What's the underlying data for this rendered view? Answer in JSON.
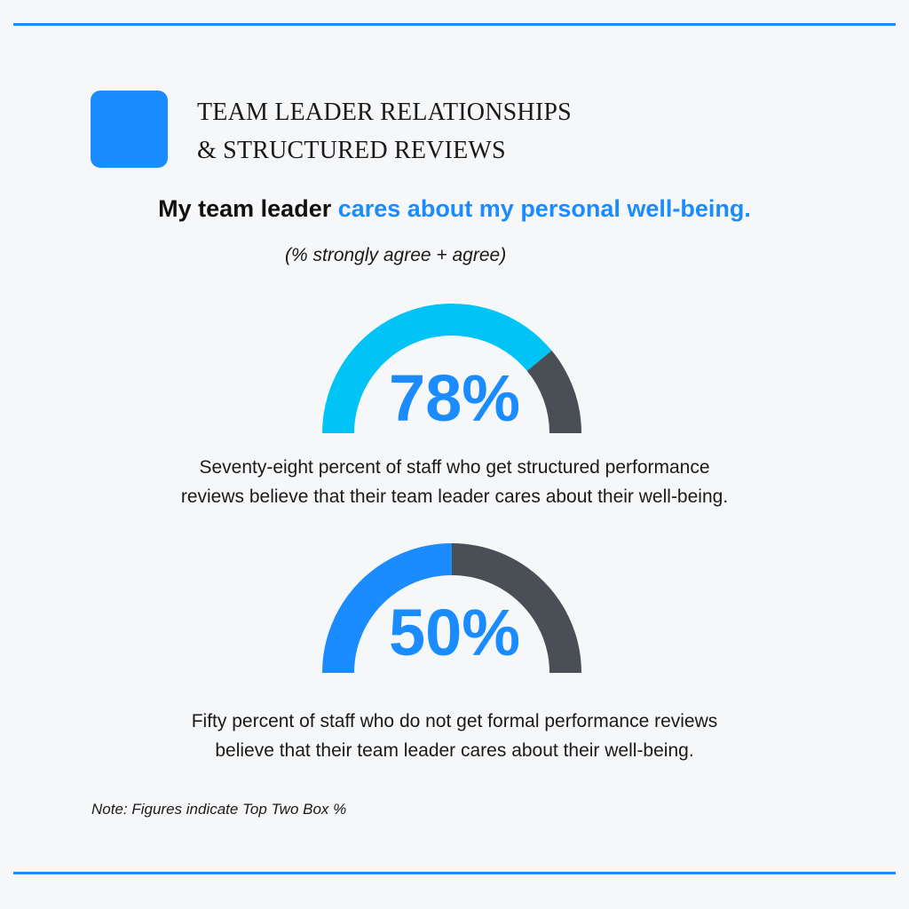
{
  "header": {
    "title_line1": "TEAM LEADER RELATIONSHIPS",
    "title_line2": "& STRUCTURED REVIEWS",
    "headline_plain": "My team leader",
    "headline_accent": "cares about my personal well-being.",
    "subtitle": "(% strongly agree + agree)"
  },
  "colors": {
    "brand_blue": "#1a8cff",
    "gauge1_fill": "#00c4f5",
    "gauge2_fill": "#1a8cff",
    "gauge_remainder": "#4a4f56"
  },
  "chart_data": [
    {
      "type": "gauge",
      "value": 78,
      "max": 100,
      "label": "78%",
      "caption_line1": "Seventy-eight percent of staff who get structured performance",
      "caption_line2": "reviews believe that their team leader cares about their well-being."
    },
    {
      "type": "gauge",
      "value": 50,
      "max": 100,
      "label": "50%",
      "caption_line1": "Fifty percent of staff who do not get formal performance reviews",
      "caption_line2": "believe that their team leader cares about their well-being."
    }
  ],
  "footer": {
    "note": "Note: Figures indicate Top Two Box %"
  }
}
